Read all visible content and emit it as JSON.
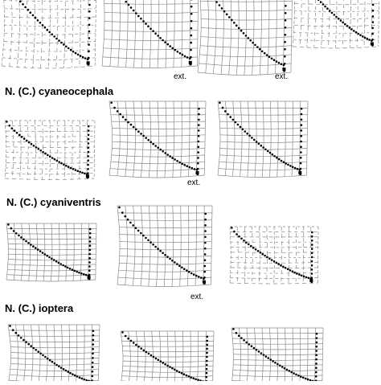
{
  "groups": [
    {
      "label": "N. (C.) cyaneocephala"
    },
    {
      "label": "N. (C.) cyaniventris"
    },
    {
      "label": "N. (C.) ioptera"
    }
  ],
  "ext_label": "ext.",
  "colors": {
    "grid": "#8a8a8a",
    "dots": "#000000",
    "text": "#000000"
  }
}
